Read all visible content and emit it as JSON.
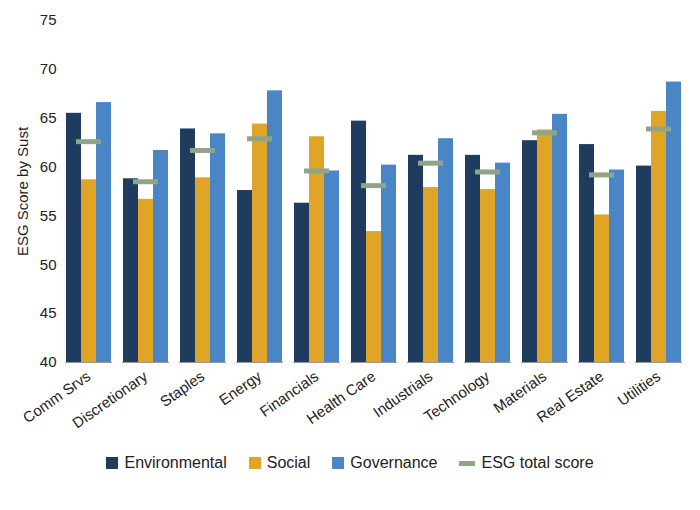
{
  "chart_data": {
    "type": "bar",
    "y_label": "ESG Score by Sust",
    "categories": [
      "Comm Srvs",
      "Discretionary",
      "Staples",
      "Energy",
      "Financials",
      "Health Care",
      "Industrials",
      "Technology",
      "Materials",
      "Real Estate",
      "Utilities"
    ],
    "series": [
      {
        "name": "Environmental",
        "type": "bar",
        "color": "#1f3b5e",
        "values": [
          65.5,
          58.8,
          63.9,
          57.6,
          56.3,
          64.7,
          61.2,
          61.2,
          62.7,
          62.3,
          60.1
        ]
      },
      {
        "name": "Social",
        "type": "bar",
        "color": "#e0a526",
        "values": [
          58.7,
          56.7,
          58.9,
          64.4,
          63.1,
          53.4,
          57.9,
          57.7,
          63.8,
          55.1,
          65.7
        ]
      },
      {
        "name": "Governance",
        "type": "bar",
        "color": "#4a86c5",
        "values": [
          66.6,
          61.7,
          63.4,
          67.8,
          59.6,
          60.2,
          62.9,
          60.4,
          65.4,
          59.7,
          68.7
        ]
      },
      {
        "name": "ESG total score",
        "type": "tick",
        "color": "#8fa58a",
        "values": [
          62.6,
          58.5,
          61.7,
          62.9,
          59.6,
          58.1,
          60.4,
          59.5,
          63.5,
          59.2,
          63.9
        ]
      }
    ],
    "ylim": [
      40,
      75
    ],
    "yticks": [
      40,
      45,
      50,
      55,
      60,
      65,
      70,
      75
    ],
    "legend": "bottom"
  }
}
